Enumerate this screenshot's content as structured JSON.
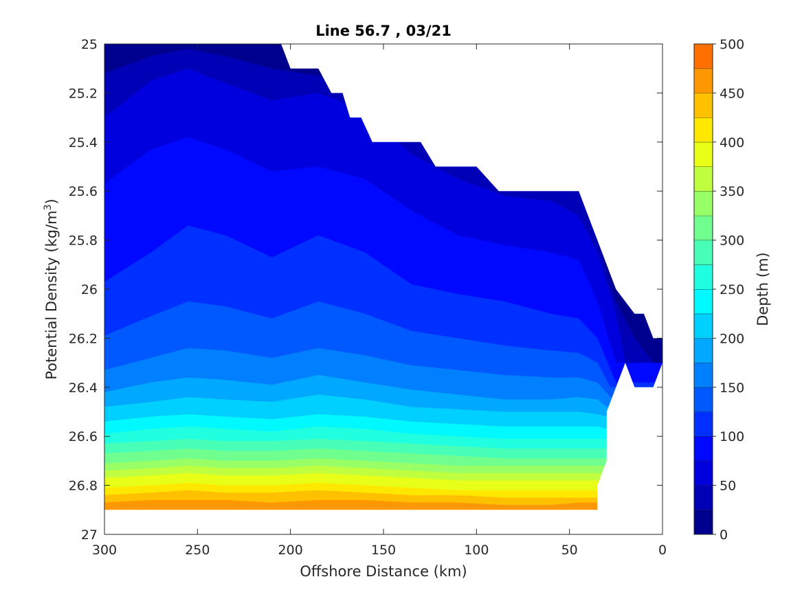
{
  "chart_data": {
    "type": "contour",
    "title": "Line 56.7 , 03/21",
    "xlabel": "Offshore Distance (km)",
    "ylabel": "Potential Density (kg/m",
    "ylabel_superscript": "3",
    "ylabel_suffix": ")",
    "colorbar_label": "Depth (m)",
    "x_ticks": [
      "300",
      "250",
      "200",
      "150",
      "100",
      "50",
      "0"
    ],
    "x_tick_values": [
      300,
      250,
      200,
      150,
      100,
      50,
      0
    ],
    "y_ticks": [
      "25",
      "25.2",
      "25.4",
      "25.6",
      "25.8",
      "26",
      "26.2",
      "26.4",
      "26.6",
      "26.8",
      "27"
    ],
    "y_tick_values": [
      25,
      25.2,
      25.4,
      25.6,
      25.8,
      26,
      26.2,
      26.4,
      26.6,
      26.8,
      27
    ],
    "colorbar_ticks": [
      "0",
      "50",
      "100",
      "150",
      "200",
      "250",
      "300",
      "350",
      "400",
      "450",
      "500"
    ],
    "colorbar_tick_values": [
      0,
      50,
      100,
      150,
      200,
      250,
      300,
      350,
      400,
      450,
      500
    ],
    "xlim": [
      300,
      0
    ],
    "x_reversed": true,
    "ylim": [
      25,
      27
    ],
    "y_reversed": true,
    "clim": [
      0,
      500
    ],
    "contour_interval": 25,
    "colormap": "jet",
    "colors": [
      "#00008f",
      "#0000b7",
      "#0000df",
      "#0008ff",
      "#0030ff",
      "#0058ff",
      "#0080ff",
      "#00a8ff",
      "#00d0ff",
      "#00f8ff",
      "#20ffdf",
      "#48ffb7",
      "#70ff8f",
      "#98ff67",
      "#c0ff3f",
      "#e8ff17",
      "#ffe800",
      "#ffc000",
      "#ff9800",
      "#ff7000"
    ],
    "top_boundary": [
      [
        300,
        25.0
      ],
      [
        205,
        25.0
      ],
      [
        200,
        25.1
      ],
      [
        185,
        25.1
      ],
      [
        178,
        25.2
      ],
      [
        172,
        25.2
      ],
      [
        168,
        25.3
      ],
      [
        162,
        25.3
      ],
      [
        156,
        25.4
      ],
      [
        130,
        25.4
      ],
      [
        122,
        25.5
      ],
      [
        110,
        25.5
      ],
      [
        100,
        25.5
      ],
      [
        88,
        25.6
      ],
      [
        75,
        25.6
      ],
      [
        45,
        25.6
      ],
      [
        40,
        25.7
      ],
      [
        35,
        25.8
      ],
      [
        25,
        26.0
      ],
      [
        15,
        26.1
      ],
      [
        10,
        26.1
      ],
      [
        5,
        26.2
      ],
      [
        0,
        26.2
      ]
    ],
    "bottom_boundary": [
      [
        300,
        26.9
      ],
      [
        35,
        26.9
      ],
      [
        35,
        26.8
      ],
      [
        30,
        26.7
      ],
      [
        30,
        26.5
      ],
      [
        25,
        26.4
      ],
      [
        20,
        26.3
      ],
      [
        15,
        26.4
      ],
      [
        5,
        26.4
      ],
      [
        0,
        26.3
      ]
    ],
    "depth_isopycnals": [
      {
        "depth": 25,
        "x": [
          300,
          275,
          255,
          235,
          210,
          185,
          160,
          135,
          110,
          85,
          60,
          45,
          35,
          25,
          15,
          5
        ],
        "y": [
          25.12,
          25.05,
          25.02,
          25.05,
          25.1,
          25.13,
          25.22,
          25.37,
          25.47,
          25.53,
          25.57,
          25.6,
          25.8,
          26.05,
          26.2,
          26.3
        ]
      },
      {
        "depth": 50,
        "x": [
          300,
          275,
          255,
          235,
          210,
          185,
          160,
          135,
          110,
          85,
          60,
          45,
          35,
          25,
          20
        ],
        "y": [
          25.3,
          25.15,
          25.1,
          25.16,
          25.23,
          25.2,
          25.27,
          25.45,
          25.55,
          25.62,
          25.64,
          25.7,
          25.85,
          26.1,
          26.3
        ]
      },
      {
        "depth": 75,
        "x": [
          300,
          275,
          255,
          235,
          210,
          185,
          160,
          135,
          110,
          85,
          60,
          45,
          35,
          25
        ],
        "y": [
          25.57,
          25.43,
          25.38,
          25.43,
          25.52,
          25.5,
          25.55,
          25.68,
          25.78,
          25.82,
          25.85,
          25.88,
          26.05,
          26.3
        ]
      },
      {
        "depth": 100,
        "x": [
          300,
          275,
          255,
          235,
          210,
          185,
          160,
          135,
          110,
          85,
          60,
          45,
          35,
          25
        ],
        "y": [
          25.97,
          25.85,
          25.74,
          25.78,
          25.87,
          25.78,
          25.85,
          25.98,
          26.02,
          26.05,
          26.1,
          26.12,
          26.2,
          26.38
        ]
      },
      {
        "depth": 125,
        "x": [
          300,
          275,
          255,
          235,
          210,
          185,
          160,
          135,
          110,
          85,
          60,
          45,
          35,
          28
        ],
        "y": [
          26.19,
          26.11,
          26.05,
          26.07,
          26.12,
          26.05,
          26.1,
          26.17,
          26.2,
          26.23,
          26.25,
          26.26,
          26.3,
          26.4
        ]
      },
      {
        "depth": 150,
        "x": [
          300,
          275,
          255,
          235,
          210,
          185,
          160,
          135,
          110,
          85,
          60,
          45,
          35,
          28
        ],
        "y": [
          26.33,
          26.28,
          26.24,
          26.25,
          26.28,
          26.24,
          26.27,
          26.31,
          26.33,
          26.35,
          26.36,
          26.36,
          26.38,
          26.44
        ]
      },
      {
        "depth": 175,
        "x": [
          300,
          275,
          255,
          235,
          210,
          185,
          160,
          135,
          110,
          85,
          60,
          45,
          35,
          30
        ],
        "y": [
          26.42,
          26.38,
          26.36,
          26.37,
          26.39,
          26.35,
          26.38,
          26.41,
          26.43,
          26.45,
          26.45,
          26.44,
          26.45,
          26.48
        ]
      },
      {
        "depth": 200,
        "x": [
          300,
          275,
          255,
          235,
          210,
          185,
          160,
          135,
          110,
          85,
          60,
          45,
          35,
          30
        ],
        "y": [
          26.48,
          26.46,
          26.44,
          26.45,
          26.46,
          26.43,
          26.45,
          26.48,
          26.49,
          26.5,
          26.5,
          26.5,
          26.51,
          26.52
        ]
      },
      {
        "depth": 225,
        "x": [
          300,
          275,
          255,
          235,
          210,
          185,
          160,
          135,
          110,
          85,
          60,
          45,
          35,
          30
        ],
        "y": [
          26.54,
          26.52,
          26.51,
          26.52,
          26.53,
          26.51,
          26.52,
          26.54,
          26.55,
          26.56,
          26.56,
          26.56,
          26.56,
          26.57
        ]
      },
      {
        "depth": 250,
        "x": [
          300,
          275,
          255,
          235,
          210,
          185,
          160,
          135,
          110,
          85,
          60,
          45,
          35,
          30
        ],
        "y": [
          26.59,
          26.57,
          26.56,
          26.57,
          26.58,
          26.56,
          26.57,
          26.59,
          26.6,
          26.61,
          26.61,
          26.61,
          26.61,
          26.61
        ]
      },
      {
        "depth": 275,
        "x": [
          300,
          275,
          255,
          235,
          210,
          185,
          160,
          135,
          110,
          85,
          60,
          45,
          35,
          30
        ],
        "y": [
          26.63,
          26.62,
          26.61,
          26.62,
          26.62,
          26.61,
          26.62,
          26.63,
          26.64,
          26.65,
          26.65,
          26.65,
          26.65,
          26.65
        ]
      },
      {
        "depth": 300,
        "x": [
          300,
          275,
          255,
          235,
          210,
          185,
          160,
          135,
          110,
          85,
          60,
          45,
          35,
          30
        ],
        "y": [
          26.67,
          26.66,
          26.65,
          26.66,
          26.66,
          26.65,
          26.66,
          26.67,
          26.68,
          26.69,
          26.69,
          26.69,
          26.69,
          26.69
        ]
      },
      {
        "depth": 325,
        "x": [
          300,
          275,
          255,
          235,
          210,
          185,
          160,
          135,
          110,
          85,
          60,
          45,
          35,
          30
        ],
        "y": [
          26.71,
          26.7,
          26.69,
          26.7,
          26.7,
          26.69,
          26.7,
          26.71,
          26.72,
          26.72,
          26.72,
          26.72,
          26.72,
          26.72
        ]
      },
      {
        "depth": 350,
        "x": [
          300,
          275,
          255,
          235,
          210,
          185,
          160,
          135,
          110,
          85,
          60,
          45,
          35,
          30
        ],
        "y": [
          26.74,
          26.73,
          26.72,
          26.73,
          26.73,
          26.72,
          26.73,
          26.74,
          26.75,
          26.75,
          26.75,
          26.75,
          26.75,
          26.75
        ]
      },
      {
        "depth": 375,
        "x": [
          300,
          275,
          255,
          235,
          210,
          185,
          160,
          135,
          110,
          85,
          60,
          45,
          35,
          30
        ],
        "y": [
          26.77,
          26.76,
          26.75,
          26.76,
          26.76,
          26.75,
          26.76,
          26.77,
          26.78,
          26.78,
          26.78,
          26.78,
          26.78,
          26.78
        ]
      },
      {
        "depth": 400,
        "x": [
          300,
          275,
          255,
          235,
          210,
          185,
          160,
          135,
          110,
          85,
          60,
          45,
          35,
          30
        ],
        "y": [
          26.81,
          26.8,
          26.79,
          26.8,
          26.8,
          26.79,
          26.8,
          26.81,
          26.82,
          26.82,
          26.82,
          26.82,
          26.82,
          26.82
        ]
      },
      {
        "depth": 425,
        "x": [
          300,
          275,
          255,
          235,
          210,
          185,
          160,
          135,
          110,
          85,
          60,
          45,
          35,
          30
        ],
        "y": [
          26.84,
          26.83,
          26.82,
          26.83,
          26.83,
          26.82,
          26.83,
          26.84,
          26.84,
          26.85,
          26.85,
          26.85,
          26.85,
          26.85
        ]
      },
      {
        "depth": 450,
        "x": [
          300,
          275,
          255,
          235,
          210,
          185,
          160,
          135,
          110,
          85,
          60,
          45,
          35,
          30
        ],
        "y": [
          26.87,
          26.86,
          26.86,
          26.86,
          26.87,
          26.86,
          26.86,
          26.87,
          26.87,
          26.88,
          26.88,
          26.87,
          26.87,
          26.87
        ]
      }
    ]
  }
}
